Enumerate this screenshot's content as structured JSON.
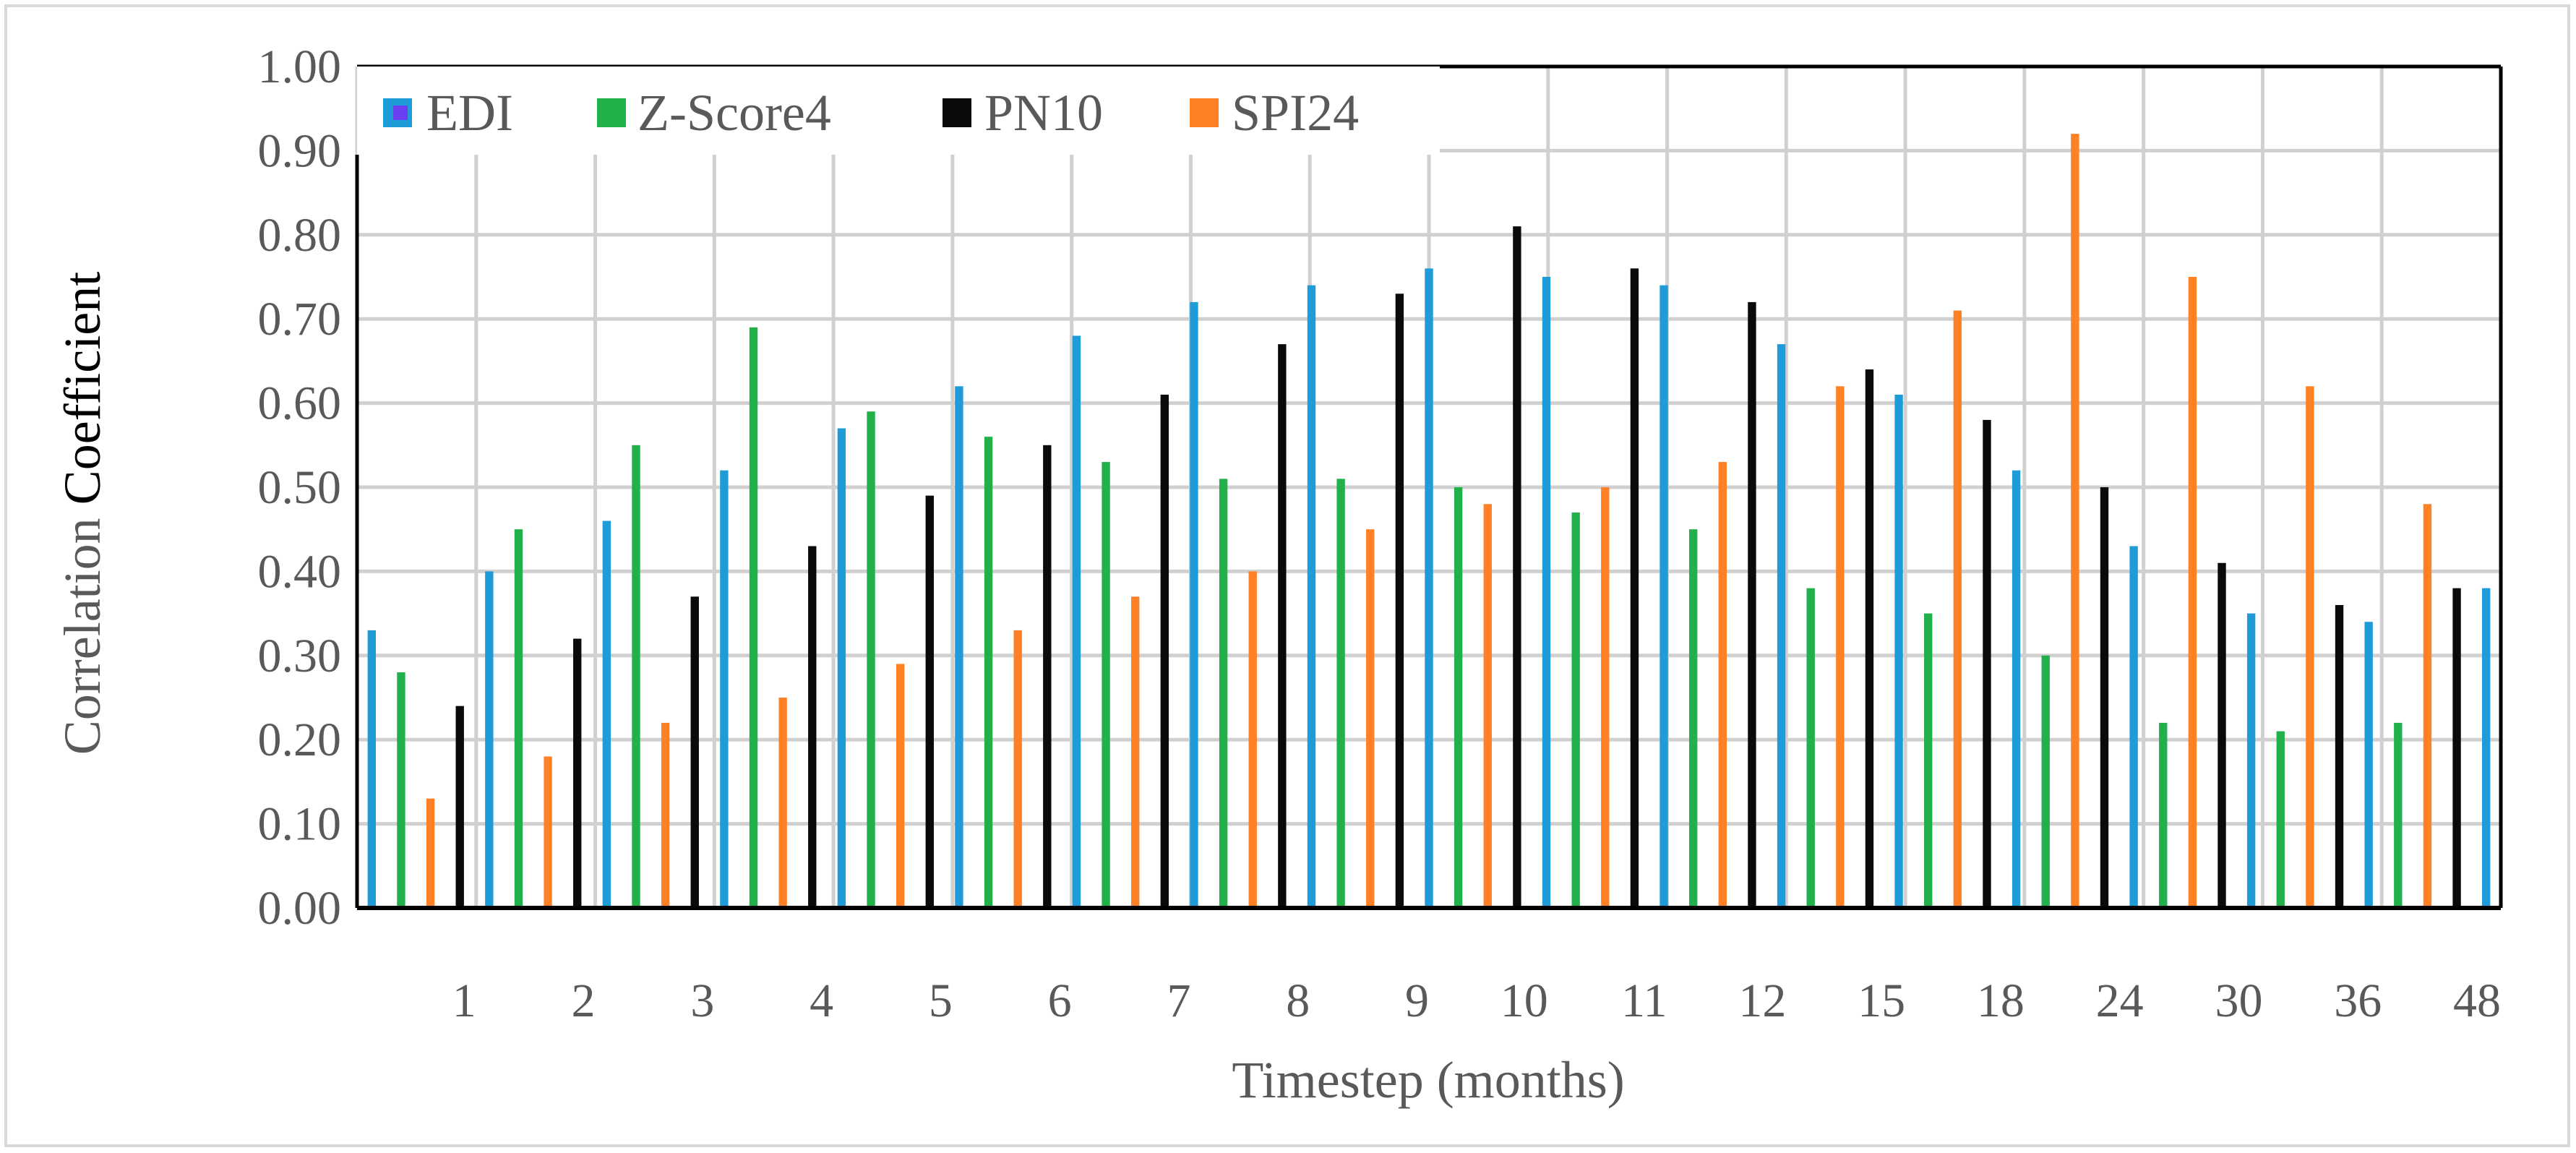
{
  "chart_data": {
    "type": "bar",
    "title": "",
    "xlabel": "Timestep (months)",
    "ylabel_parts": [
      "Correlation ",
      "Coefficient"
    ],
    "categories": [
      "",
      "1",
      "2",
      "3",
      "4",
      "5",
      "6",
      "7",
      "8",
      "9",
      "10",
      "11",
      "12",
      "15",
      "18",
      "24",
      "30",
      "36",
      "48"
    ],
    "ylim": [
      0,
      1.0
    ],
    "yticks": [
      0.0,
      0.1,
      0.2,
      0.3,
      0.4,
      0.5,
      0.6,
      0.7,
      0.8,
      0.9,
      1.0
    ],
    "ytick_labels": [
      "0.00",
      "0.10",
      "0.20",
      "0.30",
      "0.40",
      "0.50",
      "0.60",
      "0.70",
      "0.80",
      "0.90",
      "1.00"
    ],
    "grid": true,
    "legend_position": "top-left",
    "series": [
      {
        "name": "EDI",
        "color": "#1f9bd7",
        "values": [
          0.33,
          0.4,
          0.46,
          0.52,
          0.57,
          0.62,
          0.68,
          0.72,
          0.74,
          0.76,
          0.75,
          0.74,
          0.67,
          0.61,
          0.52,
          0.43,
          0.35,
          0.34,
          0.38
        ]
      },
      {
        "name": "Z-Score4",
        "color": "#22b04b",
        "values": [
          0.28,
          0.45,
          0.55,
          0.69,
          0.59,
          0.56,
          0.53,
          0.51,
          0.51,
          0.5,
          0.47,
          0.45,
          0.38,
          0.35,
          0.3,
          0.22,
          0.21,
          0.22,
          null
        ]
      },
      {
        "name": "PN10",
        "color": "#0a0a0a",
        "values": [
          0.24,
          0.32,
          0.37,
          0.43,
          0.49,
          0.55,
          0.61,
          0.67,
          0.73,
          0.81,
          0.76,
          0.72,
          0.64,
          0.58,
          0.5,
          0.41,
          0.36,
          0.38,
          null
        ]
      },
      {
        "name": "SPI24",
        "color": "#ff8025",
        "values": [
          0.13,
          0.18,
          0.22,
          0.25,
          0.29,
          0.33,
          0.37,
          0.4,
          0.45,
          0.48,
          0.5,
          0.53,
          0.62,
          0.71,
          0.92,
          0.75,
          0.62,
          0.48,
          null
        ]
      }
    ],
    "bar_sequence": [
      [
        0,
        0
      ],
      [
        1,
        0
      ],
      [
        3,
        0
      ],
      [
        2,
        0
      ],
      [
        0,
        1
      ],
      [
        1,
        1
      ],
      [
        3,
        1
      ],
      [
        2,
        1
      ],
      [
        0,
        2
      ],
      [
        1,
        2
      ],
      [
        3,
        2
      ],
      [
        2,
        2
      ],
      [
        0,
        3
      ],
      [
        1,
        3
      ],
      [
        3,
        3
      ],
      [
        2,
        3
      ],
      [
        0,
        4
      ],
      [
        1,
        4
      ],
      [
        3,
        4
      ],
      [
        2,
        4
      ],
      [
        0,
        5
      ],
      [
        1,
        5
      ],
      [
        3,
        5
      ],
      [
        2,
        5
      ],
      [
        0,
        6
      ],
      [
        1,
        6
      ],
      [
        3,
        6
      ],
      [
        2,
        6
      ],
      [
        0,
        7
      ],
      [
        1,
        7
      ],
      [
        3,
        7
      ],
      [
        2,
        7
      ],
      [
        0,
        8
      ],
      [
        1,
        8
      ],
      [
        3,
        8
      ],
      [
        2,
        8
      ],
      [
        0,
        9
      ],
      [
        1,
        9
      ],
      [
        3,
        9
      ],
      [
        2,
        9
      ],
      [
        0,
        10
      ],
      [
        1,
        10
      ],
      [
        3,
        10
      ],
      [
        2,
        10
      ],
      [
        0,
        11
      ],
      [
        1,
        11
      ],
      [
        3,
        11
      ],
      [
        2,
        11
      ],
      [
        0,
        12
      ],
      [
        1,
        12
      ],
      [
        3,
        12
      ],
      [
        2,
        12
      ],
      [
        0,
        13
      ],
      [
        1,
        13
      ],
      [
        3,
        13
      ],
      [
        2,
        13
      ],
      [
        0,
        14
      ],
      [
        1,
        14
      ],
      [
        3,
        14
      ],
      [
        2,
        14
      ],
      [
        0,
        15
      ],
      [
        1,
        15
      ],
      [
        3,
        15
      ],
      [
        2,
        15
      ],
      [
        0,
        16
      ],
      [
        1,
        16
      ],
      [
        3,
        16
      ],
      [
        2,
        16
      ],
      [
        0,
        17
      ],
      [
        1,
        17
      ],
      [
        3,
        17
      ],
      [
        2,
        17
      ],
      [
        0,
        18
      ]
    ]
  }
}
